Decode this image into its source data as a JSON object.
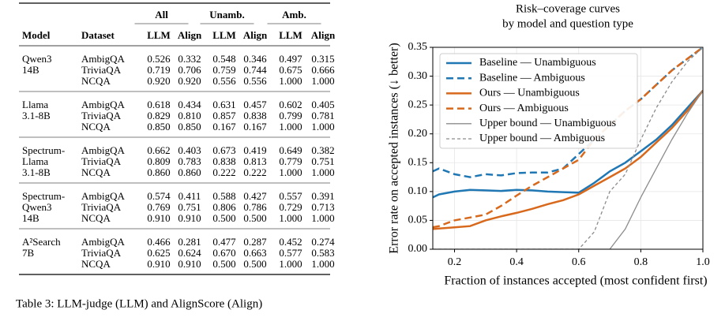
{
  "table": {
    "group_headers": [
      "All",
      "Unamb.",
      "Amb."
    ],
    "columns": [
      "Model",
      "Dataset",
      "LLM",
      "Align",
      "LLM",
      "Align",
      "LLM",
      "Align"
    ],
    "groups": [
      {
        "model": [
          "Qwen3",
          "14B"
        ],
        "rows": [
          {
            "dataset": "AmbigQA",
            "values": [
              "0.526",
              "0.332",
              "0.548",
              "0.346",
              "0.497",
              "0.315"
            ]
          },
          {
            "dataset": "TriviaQA",
            "values": [
              "0.719",
              "0.706",
              "0.759",
              "0.744",
              "0.675",
              "0.666"
            ]
          },
          {
            "dataset": "NCQA",
            "values": [
              "0.920",
              "0.920",
              "0.556",
              "0.556",
              "1.000",
              "1.000"
            ]
          }
        ]
      },
      {
        "model": [
          "Llama",
          "3.1-8B"
        ],
        "rows": [
          {
            "dataset": "AmbigQA",
            "values": [
              "0.618",
              "0.434",
              "0.631",
              "0.457",
              "0.602",
              "0.405"
            ]
          },
          {
            "dataset": "TriviaQA",
            "values": [
              "0.829",
              "0.810",
              "0.857",
              "0.838",
              "0.799",
              "0.781"
            ]
          },
          {
            "dataset": "NCQA",
            "values": [
              "0.850",
              "0.850",
              "0.167",
              "0.167",
              "1.000",
              "1.000"
            ]
          }
        ]
      },
      {
        "model": [
          "Spectrum-",
          "Llama",
          "3.1-8B"
        ],
        "rows": [
          {
            "dataset": "AmbigQA",
            "values": [
              "0.662",
              "0.403",
              "0.673",
              "0.419",
              "0.649",
              "0.382"
            ]
          },
          {
            "dataset": "TriviaQA",
            "values": [
              "0.809",
              "0.783",
              "0.838",
              "0.813",
              "0.779",
              "0.751"
            ]
          },
          {
            "dataset": "NCQA",
            "values": [
              "0.860",
              "0.860",
              "0.222",
              "0.222",
              "1.000",
              "1.000"
            ]
          }
        ]
      },
      {
        "model": [
          "Spectrum-",
          "Qwen3",
          "14B"
        ],
        "rows": [
          {
            "dataset": "AmbigQA",
            "values": [
              "0.574",
              "0.411",
              "0.588",
              "0.427",
              "0.557",
              "0.391"
            ]
          },
          {
            "dataset": "TriviaQA",
            "values": [
              "0.769",
              "0.751",
              "0.806",
              "0.786",
              "0.729",
              "0.713"
            ]
          },
          {
            "dataset": "NCQA",
            "values": [
              "0.910",
              "0.910",
              "0.500",
              "0.500",
              "1.000",
              "1.000"
            ]
          }
        ]
      },
      {
        "model": [
          "A²Search",
          "7B"
        ],
        "rows": [
          {
            "dataset": "AmbigQA",
            "values": [
              "0.466",
              "0.281",
              "0.477",
              "0.287",
              "0.452",
              "0.274"
            ]
          },
          {
            "dataset": "TriviaQA",
            "values": [
              "0.625",
              "0.624",
              "0.670",
              "0.663",
              "0.577",
              "0.583"
            ]
          },
          {
            "dataset": "NCQA",
            "values": [
              "0.910",
              "0.910",
              "0.500",
              "0.500",
              "1.000",
              "1.000"
            ]
          }
        ]
      }
    ],
    "caption": "Table 3: LLM-judge (LLM) and AlignScore (Align)"
  },
  "chart_data": {
    "type": "line",
    "title": [
      "Risk–coverage curves",
      "by model and question type"
    ],
    "x_label": "Fraction of instances accepted (most confident first)",
    "y_label": "Error rate on accepted instances (↓ better)",
    "x": [
      0.13,
      0.15,
      0.2,
      0.25,
      0.3,
      0.35,
      0.4,
      0.45,
      0.5,
      0.55,
      0.6,
      0.65,
      0.7,
      0.75,
      0.8,
      0.85,
      0.9,
      0.95,
      1.0
    ],
    "series": [
      {
        "name": "Baseline — Unambiguous",
        "color": "#1f77b4",
        "dash": false,
        "width": 2.5,
        "values": [
          0.09,
          0.095,
          0.1,
          0.103,
          0.102,
          0.101,
          0.103,
          0.102,
          0.1,
          0.099,
          0.098,
          0.115,
          0.135,
          0.15,
          0.17,
          0.19,
          0.215,
          0.245,
          0.275
        ]
      },
      {
        "name": "Baseline — Ambiguous",
        "color": "#1f77b4",
        "dash": true,
        "width": 2.5,
        "values": [
          0.135,
          0.14,
          0.13,
          0.125,
          0.13,
          0.128,
          0.132,
          0.133,
          0.133,
          0.14,
          0.165,
          0.19,
          0.215,
          0.24,
          0.26,
          0.285,
          0.31,
          0.33,
          0.35
        ]
      },
      {
        "name": "Ours — Unambiguous",
        "color": "#d8691c",
        "dash": false,
        "width": 2.5,
        "values": [
          0.035,
          0.036,
          0.038,
          0.04,
          0.05,
          0.057,
          0.063,
          0.07,
          0.078,
          0.085,
          0.095,
          0.11,
          0.125,
          0.14,
          0.16,
          0.185,
          0.21,
          0.24,
          0.275
        ]
      },
      {
        "name": "Ours — Ambiguous",
        "color": "#d8691c",
        "dash": true,
        "width": 2.5,
        "values": [
          0.038,
          0.04,
          0.05,
          0.055,
          0.06,
          0.075,
          0.093,
          0.11,
          0.125,
          0.14,
          0.155,
          0.19,
          0.215,
          0.24,
          0.26,
          0.285,
          0.31,
          0.33,
          0.35
        ]
      },
      {
        "name": "Upper bound — Unambiguous",
        "color": "#8c8c8c",
        "dash": false,
        "width": 1.3,
        "values": [
          0,
          0,
          0,
          0,
          0,
          0,
          0,
          0,
          0,
          0,
          0,
          0,
          0,
          0.035,
          0.09,
          0.14,
          0.19,
          0.235,
          0.275
        ]
      },
      {
        "name": "Upper bound — Ambiguous",
        "color": "#8c8c8c",
        "dash": true,
        "width": 1.3,
        "values": [
          0,
          0,
          0,
          0,
          0,
          0,
          0,
          0,
          0,
          0,
          0,
          0.03,
          0.1,
          0.13,
          0.19,
          0.245,
          0.29,
          0.325,
          0.35
        ]
      }
    ],
    "xlim": [
      0.13,
      1.0
    ],
    "ylim": [
      0,
      0.35
    ],
    "xticks": [
      0.2,
      0.4,
      0.6,
      0.8,
      {
        "value": 1.0,
        "label": "1.0"
      }
    ],
    "yticks": [
      {
        "value": 0,
        "label": "0.00"
      },
      0.05,
      {
        "value": 0.1,
        "label": "0.10"
      },
      0.15,
      {
        "value": 0.2,
        "label": "0.20"
      },
      0.25,
      {
        "value": 0.3,
        "label": "0.30"
      },
      0.35
    ],
    "grid": true,
    "legend": "upper-left"
  }
}
